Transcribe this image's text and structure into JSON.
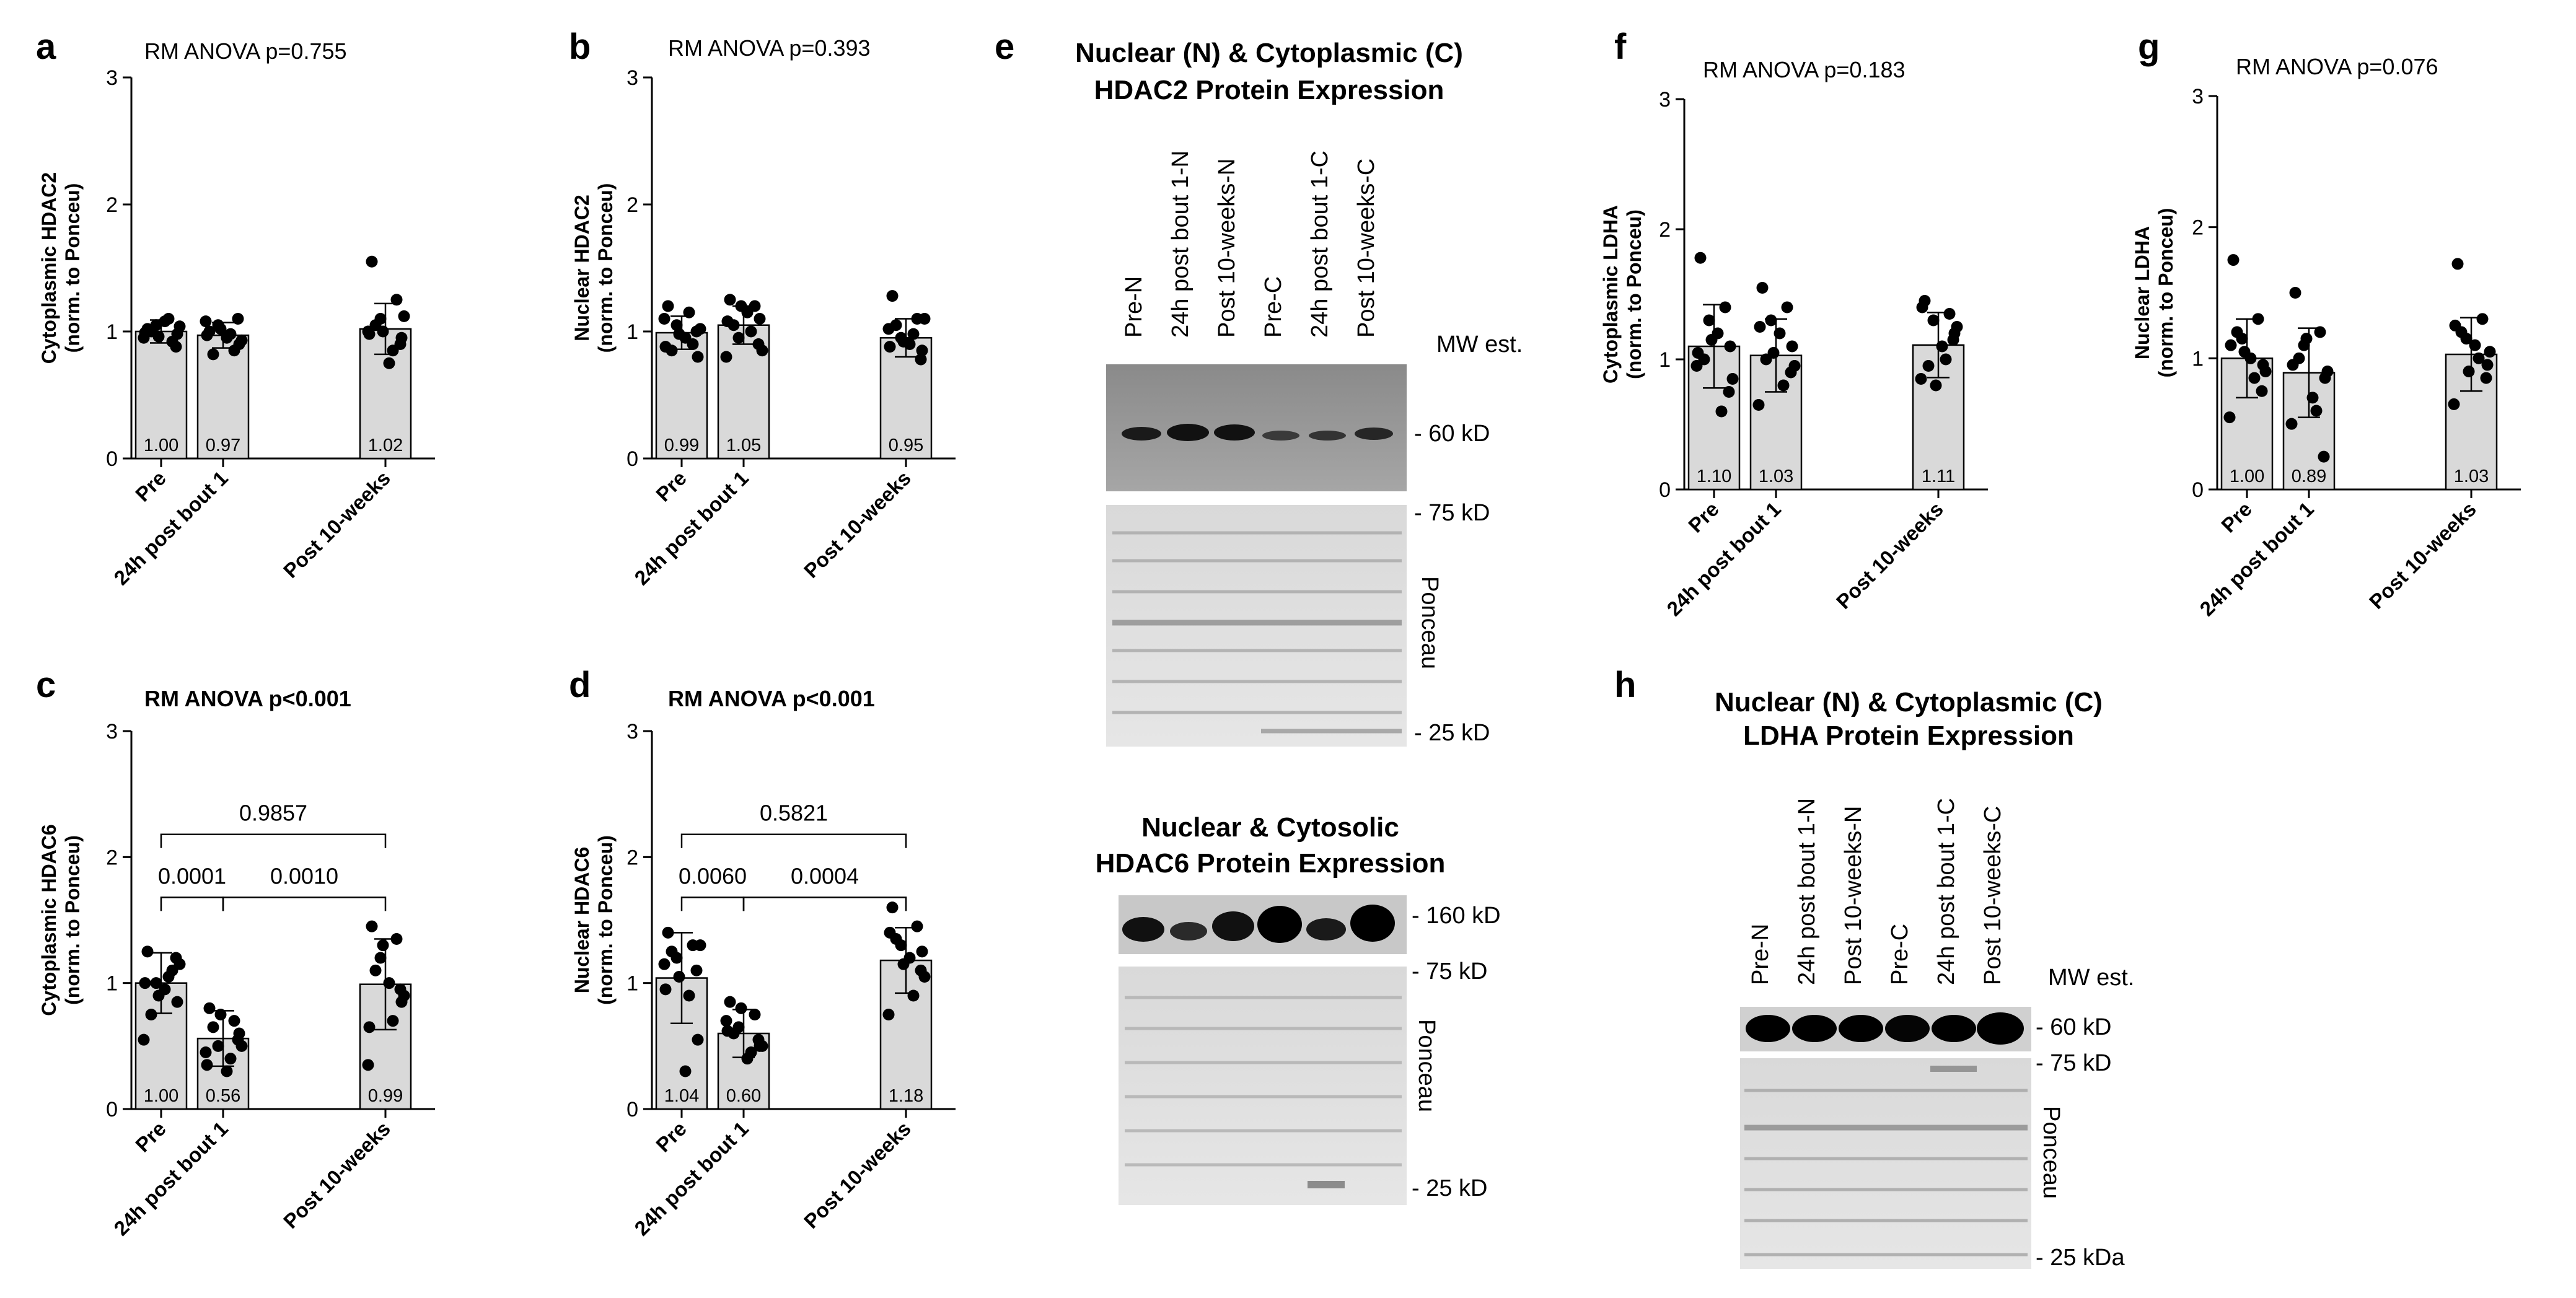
{
  "panels": [
    {
      "letter": "a",
      "anova": "RM ANOVA p=0.755",
      "anova_bold": false,
      "ylabel1": "Cytoplasmic HDAC2",
      "ylabel2": "(norm. to Ponceu)",
      "yticks": [
        "0",
        "1",
        "2",
        "3"
      ],
      "categories": [
        "Pre",
        "24h post bout 1",
        "Post 10-weeks"
      ],
      "bar_labels": [
        "1.00",
        "0.97",
        "1.02"
      ],
      "comparisons": []
    },
    {
      "letter": "b",
      "anova": "RM ANOVA p=0.393",
      "anova_bold": false,
      "ylabel1": "Nuclear HDAC2",
      "ylabel2": "(norm. to Ponceu)",
      "yticks": [
        "0",
        "1",
        "2",
        "3"
      ],
      "categories": [
        "Pre",
        "24h post bout 1",
        "Post 10-weeks"
      ],
      "bar_labels": [
        "0.99",
        "1.05",
        "0.95"
      ],
      "comparisons": []
    },
    {
      "letter": "c",
      "anova": "RM ANOVA p<0.001",
      "anova_bold": true,
      "ylabel1": "Cytoplasmic HDAC6",
      "ylabel2": "(norm. to Ponceu)",
      "yticks": [
        "0",
        "1",
        "2",
        "3"
      ],
      "categories": [
        "Pre",
        "24h post bout 1",
        "Post 10-weeks"
      ],
      "bar_labels": [
        "1.00",
        "0.56",
        "0.99"
      ],
      "comparisons": [
        {
          "from": 0,
          "to": 1,
          "p": "0.0001",
          "y": 1.68
        },
        {
          "from": 1,
          "to": 2,
          "p": "0.0010",
          "y": 1.68
        },
        {
          "from": 0,
          "to": 2,
          "p": "0.9857",
          "y": 2.18
        }
      ]
    },
    {
      "letter": "d",
      "anova": "RM ANOVA p<0.001",
      "anova_bold": true,
      "ylabel1": "Nuclear HDAC6",
      "ylabel2": "(norm. to Ponceu)",
      "yticks": [
        "0",
        "1",
        "2",
        "3"
      ],
      "categories": [
        "Pre",
        "24h post bout 1",
        "Post 10-weeks"
      ],
      "bar_labels": [
        "1.04",
        "0.60",
        "1.18"
      ],
      "comparisons": [
        {
          "from": 0,
          "to": 1,
          "p": "0.0060",
          "y": 1.68
        },
        {
          "from": 1,
          "to": 2,
          "p": "0.0004",
          "y": 1.68
        },
        {
          "from": 0,
          "to": 2,
          "p": "0.5821",
          "y": 2.18
        }
      ]
    },
    {
      "letter": "f",
      "anova": "RM ANOVA p=0.183",
      "anova_bold": false,
      "ylabel1": "Cytoplasmic LDHA",
      "ylabel2": "(norm. to Ponceu)",
      "yticks": [
        "0",
        "1",
        "2",
        "3"
      ],
      "categories": [
        "Pre",
        "24h post bout 1",
        "Post 10-weeks"
      ],
      "bar_labels": [
        "1.10",
        "1.03",
        "1.11"
      ],
      "comparisons": []
    },
    {
      "letter": "g",
      "anova": "RM ANOVA p=0.076",
      "anova_bold": false,
      "ylabel1": "Nuclear LDHA",
      "ylabel2": "(norm. to Ponceu)",
      "yticks": [
        "0",
        "1",
        "2",
        "3"
      ],
      "categories": [
        "Pre",
        "24h post bout 1",
        "Post 10-weeks"
      ],
      "bar_labels": [
        "1.00",
        "0.89",
        "1.03"
      ],
      "comparisons": []
    }
  ],
  "chart_data": [
    {
      "panel": "a",
      "type": "bar",
      "title": "RM ANOVA p=0.755",
      "ylabel": "Cytoplasmic HDAC2 (norm. to Ponceu)",
      "ylim": [
        0,
        3
      ],
      "categories": [
        "Pre",
        "24h post bout 1",
        "Post 10-weeks"
      ],
      "values": [
        1.0,
        0.97,
        1.02
      ],
      "sd": [
        0.09,
        0.1,
        0.2
      ],
      "points": [
        [
          1.02,
          0.92,
          1.05,
          0.98,
          0.95,
          1.08,
          0.88,
          1.0,
          1.1,
          0.96,
          1.04,
          0.99
        ],
        [
          1.0,
          0.85,
          1.05,
          0.9,
          1.08,
          0.95,
          1.1,
          0.82,
          0.98,
          1.02,
          0.93,
          0.97
        ],
        [
          1.55,
          1.25,
          1.1,
          0.95,
          1.0,
          0.75,
          0.9,
          1.05,
          0.85,
          1.0,
          1.12,
          0.98
        ]
      ]
    },
    {
      "panel": "b",
      "type": "bar",
      "title": "RM ANOVA p=0.393",
      "ylabel": "Nuclear HDAC2 (norm. to Ponceu)",
      "ylim": [
        0,
        3
      ],
      "categories": [
        "Pre",
        "24h post bout 1",
        "Post 10-weeks"
      ],
      "values": [
        0.99,
        1.05,
        0.95
      ],
      "sd": [
        0.13,
        0.15,
        0.15
      ],
      "points": [
        [
          1.2,
          0.9,
          1.05,
          0.8,
          1.1,
          0.95,
          1.0,
          0.85,
          1.15,
          0.98,
          1.02,
          0.88
        ],
        [
          1.25,
          1.2,
          0.95,
          1.1,
          0.8,
          1.15,
          0.9,
          1.05,
          1.0,
          1.2,
          0.85,
          1.08
        ],
        [
          1.28,
          1.1,
          0.95,
          0.85,
          1.02,
          0.9,
          0.78,
          1.05,
          0.98,
          0.92,
          1.1,
          0.88
        ]
      ]
    },
    {
      "panel": "c",
      "type": "bar",
      "title": "RM ANOVA p<0.001",
      "ylabel": "Cytoplasmic HDAC6 (norm. to Ponceu)",
      "ylim": [
        0,
        3
      ],
      "categories": [
        "Pre",
        "24h post bout 1",
        "Post 10-weeks"
      ],
      "values": [
        1.0,
        0.56,
        0.99
      ],
      "sd": [
        0.24,
        0.22,
        0.36
      ],
      "points": [
        [
          1.25,
          1.1,
          1.0,
          0.85,
          0.55,
          0.95,
          1.2,
          0.75,
          1.05,
          0.9,
          1.15,
          1.0
        ],
        [
          0.8,
          0.7,
          0.5,
          0.6,
          0.45,
          0.3,
          0.55,
          0.65,
          0.4,
          0.75,
          0.5,
          0.35
        ],
        [
          1.45,
          1.35,
          1.2,
          0.85,
          0.35,
          1.0,
          0.95,
          1.1,
          0.7,
          1.3,
          0.9,
          0.65
        ]
      ],
      "comparisons": [
        {
          "groups": [
            "Pre",
            "24h post bout 1"
          ],
          "p": 0.0001
        },
        {
          "groups": [
            "24h post bout 1",
            "Post 10-weeks"
          ],
          "p": 0.001
        },
        {
          "groups": [
            "Pre",
            "Post 10-weeks"
          ],
          "p": 0.9857
        }
      ]
    },
    {
      "panel": "d",
      "type": "bar",
      "title": "RM ANOVA p<0.001",
      "ylabel": "Nuclear HDAC6 (norm. to Ponceu)",
      "ylim": [
        0,
        3
      ],
      "categories": [
        "Pre",
        "24h post bout 1",
        "Post 10-weeks"
      ],
      "values": [
        1.04,
        0.6,
        1.18
      ],
      "sd": [
        0.36,
        0.19,
        0.26
      ],
      "points": [
        [
          1.4,
          1.3,
          1.2,
          0.55,
          1.15,
          0.3,
          1.1,
          1.25,
          0.9,
          1.05,
          1.3,
          0.95
        ],
        [
          0.85,
          0.75,
          0.65,
          0.5,
          0.7,
          0.4,
          0.55,
          0.6,
          0.45,
          0.8,
          0.5,
          0.62
        ],
        [
          1.6,
          1.45,
          1.3,
          1.25,
          0.75,
          1.2,
          1.1,
          1.35,
          0.9,
          1.15,
          1.05,
          1.4
        ]
      ],
      "comparisons": [
        {
          "groups": [
            "Pre",
            "24h post bout 1"
          ],
          "p": 0.006
        },
        {
          "groups": [
            "24h post bout 1",
            "Post 10-weeks"
          ],
          "p": 0.0004
        },
        {
          "groups": [
            "Pre",
            "Post 10-weeks"
          ],
          "p": 0.5821
        }
      ]
    },
    {
      "panel": "f",
      "type": "bar",
      "title": "RM ANOVA p=0.183",
      "ylabel": "Cytoplasmic LDHA (norm. to Ponceu)",
      "ylim": [
        0,
        3
      ],
      "categories": [
        "Pre",
        "24h post bout 1",
        "Post 10-weeks"
      ],
      "values": [
        1.1,
        1.03,
        1.11
      ],
      "sd": [
        0.32,
        0.28,
        0.25
      ],
      "points": [
        [
          1.78,
          1.4,
          1.3,
          1.1,
          0.95,
          1.2,
          0.75,
          1.0,
          0.6,
          1.15,
          0.85,
          1.05
        ],
        [
          1.55,
          1.4,
          1.3,
          1.1,
          0.65,
          1.2,
          0.9,
          1.0,
          0.8,
          1.05,
          0.95,
          1.25
        ],
        [
          1.45,
          1.35,
          1.3,
          1.2,
          0.85,
          1.1,
          1.15,
          0.95,
          1.0,
          0.8,
          1.25,
          1.4
        ]
      ]
    },
    {
      "panel": "g",
      "type": "bar",
      "title": "RM ANOVA p=0.076",
      "ylabel": "Nuclear LDHA (norm. to Ponceu)",
      "ylim": [
        0,
        3
      ],
      "categories": [
        "Pre",
        "24h post bout 1",
        "Post 10-weeks"
      ],
      "values": [
        1.0,
        0.89,
        1.03
      ],
      "sd": [
        0.3,
        0.34,
        0.28
      ],
      "points": [
        [
          1.75,
          1.3,
          1.15,
          0.95,
          0.55,
          1.0,
          0.75,
          1.2,
          0.85,
          1.05,
          0.9,
          1.1
        ],
        [
          1.5,
          1.2,
          1.1,
          0.85,
          0.5,
          0.7,
          0.25,
          1.0,
          0.6,
          1.15,
          0.9,
          0.95
        ],
        [
          1.72,
          1.3,
          1.15,
          0.95,
          0.65,
          1.1,
          0.85,
          1.2,
          1.0,
          0.9,
          1.05,
          1.25
        ]
      ]
    }
  ],
  "blots": {
    "e_top": {
      "letter": "e",
      "title1": "Nuclear (N) & Cytoplasmic (C)",
      "title2": "HDAC2 Protein Expression",
      "lanes": [
        "Pre-N",
        "24h post bout 1-N",
        "Post 10-weeks-N",
        "Pre-C",
        "24h post bout 1-C",
        "Post 10-weeks-C"
      ],
      "mw_header": "MW est.",
      "band_marker": "- 60 kD",
      "ponceau_top": "- 75 kD",
      "ponceau_bottom": "- 25 kD",
      "ponceau_label": "Ponceau"
    },
    "e_bottom": {
      "title1": "Nuclear & Cytosolic",
      "title2": "HDAC6 Protein Expression",
      "band_marker": "- 160 kD",
      "ponceau_top": "- 75 kD",
      "ponceau_bottom": "- 25 kD",
      "ponceau_label": "Ponceau"
    },
    "h": {
      "letter": "h",
      "title1": "Nuclear (N) & Cytoplasmic (C)",
      "title2": "LDHA Protein Expression",
      "lanes": [
        "Pre-N",
        "24h post bout 1-N",
        "Post 10-weeks-N",
        "Pre-C",
        "24h post bout 1-C",
        "Post 10-weeks-C"
      ],
      "mw_header": "MW est.",
      "band_marker": "- 60 kD",
      "ponceau_top": "- 75 kD",
      "ponceau_bottom": "- 25 kDa",
      "ponceau_label": "Ponceau"
    }
  }
}
